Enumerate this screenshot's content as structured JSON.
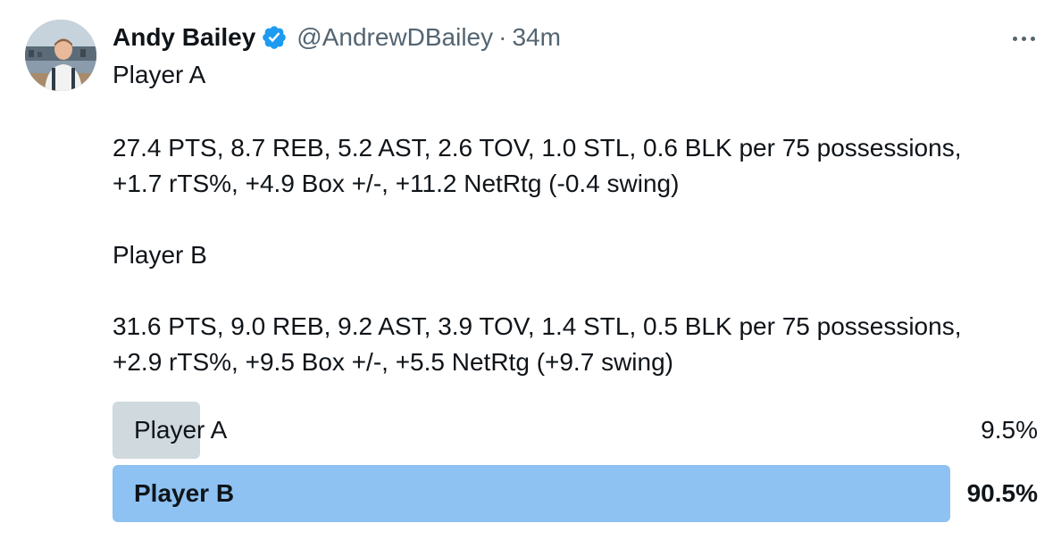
{
  "author": {
    "display_name": "Andy Bailey",
    "handle": "@AndrewDBailey",
    "separator": "·",
    "time": "34m",
    "verified": true,
    "avatar_icon": "profile-photo"
  },
  "menu_icon": "more-horizontal-icon",
  "body": {
    "line1": "Player A",
    "line2": "27.4 PTS, 8.7 REB, 5.2 AST, 2.6 TOV, 1.0 STL, 0.6 BLK per 75 possessions,",
    "line3": "+1.7 rTS%, +4.9 Box +/-, +11.2 NetRtg (-0.4 swing)",
    "line4": "Player B",
    "line5": "31.6 PTS, 9.0 REB, 9.2 AST, 3.9 TOV, 1.4 STL, 0.5 BLK per 75 possessions,",
    "line6": "+2.9 rTS%, +9.5 Box +/-, +5.5 NetRtg (+9.7 swing)"
  },
  "poll": {
    "options": [
      {
        "label": "Player A",
        "percent": "9.5%",
        "fraction": 0.095,
        "color": "#cfd9de",
        "winner": false
      },
      {
        "label": "Player B",
        "percent": "90.5%",
        "fraction": 0.905,
        "color": "#8ec2f2",
        "winner": true
      }
    ]
  },
  "colors": {
    "verified": "#1d9bf0",
    "text": "#0f1419",
    "secondary": "#536471"
  }
}
